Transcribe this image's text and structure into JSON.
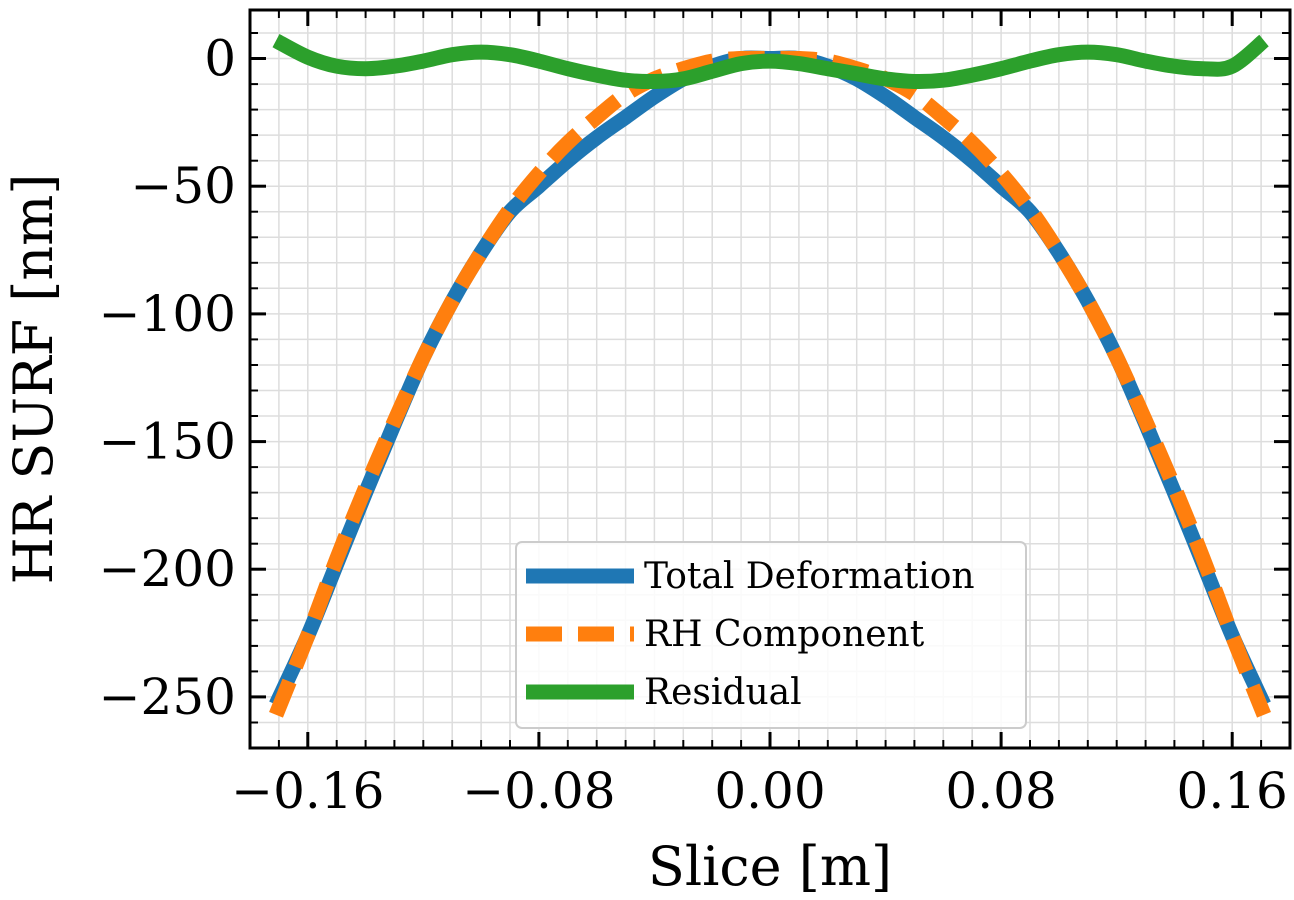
{
  "chart_data": {
    "type": "line",
    "xlabel": "Slice [m]",
    "ylabel": "HR SURF [nm]",
    "xlim": [
      -0.18,
      0.18
    ],
    "ylim": [
      -270,
      19
    ],
    "xticks": [
      -0.16,
      -0.08,
      0.0,
      0.08,
      0.16
    ],
    "xtick_labels": [
      "−0.16",
      "−0.08",
      "0.00",
      "0.08",
      "0.16"
    ],
    "yticks": [
      0,
      -50,
      -100,
      -150,
      -200,
      -250
    ],
    "ytick_labels": [
      "0",
      "−50",
      "−100",
      "−150",
      "−200",
      "−250"
    ],
    "grid": true,
    "legend_position": "lower-center",
    "series": [
      {
        "name": "Total Deformation",
        "color": "#1f77b4",
        "style": "solid",
        "x": [
          -0.171,
          -0.16,
          -0.15,
          -0.14,
          -0.13,
          -0.12,
          -0.11,
          -0.1,
          -0.09,
          -0.08,
          -0.07,
          -0.06,
          -0.05,
          -0.04,
          -0.03,
          -0.02,
          -0.01,
          0.0,
          0.01,
          0.02,
          0.03,
          0.04,
          0.05,
          0.06,
          0.07,
          0.08,
          0.09,
          0.1,
          0.11,
          0.12,
          0.13,
          0.14,
          0.15,
          0.16,
          0.171
        ],
        "y": [
          -253,
          -226,
          -198,
          -170,
          -143,
          -117,
          -95,
          -76,
          -60,
          -50,
          -40,
          -31,
          -23,
          -15,
          -8,
          -3,
          0,
          0,
          0,
          -3,
          -8,
          -15,
          -23,
          -31,
          -40,
          -50,
          -60,
          -76,
          -95,
          -117,
          -143,
          -170,
          -198,
          -226,
          -253
        ]
      },
      {
        "name": "RH Component",
        "color": "#ff7f0e",
        "style": "dashed",
        "x": [
          -0.171,
          -0.16,
          -0.15,
          -0.14,
          -0.13,
          -0.12,
          -0.11,
          -0.1,
          -0.09,
          -0.08,
          -0.07,
          -0.06,
          -0.05,
          -0.04,
          -0.03,
          -0.02,
          -0.01,
          0.0,
          0.01,
          0.02,
          0.03,
          0.04,
          0.05,
          0.06,
          0.07,
          0.08,
          0.09,
          0.1,
          0.11,
          0.12,
          0.13,
          0.14,
          0.15,
          0.16,
          0.171
        ],
        "y": [
          -257,
          -226,
          -196,
          -168,
          -142,
          -117,
          -95,
          -76,
          -59,
          -45,
          -33,
          -23,
          -14,
          -8,
          -4,
          -1,
          0,
          0,
          0,
          -1,
          -4,
          -8,
          -14,
          -23,
          -33,
          -45,
          -59,
          -76,
          -95,
          -117,
          -142,
          -168,
          -196,
          -226,
          -257
        ]
      },
      {
        "name": "Residual",
        "color": "#2ca02c",
        "style": "solid",
        "x": [
          -0.171,
          -0.16,
          -0.15,
          -0.14,
          -0.13,
          -0.12,
          -0.11,
          -0.1,
          -0.09,
          -0.08,
          -0.07,
          -0.06,
          -0.05,
          -0.04,
          -0.03,
          -0.02,
          -0.01,
          0.0,
          0.01,
          0.02,
          0.03,
          0.04,
          0.05,
          0.06,
          0.07,
          0.08,
          0.09,
          0.1,
          0.11,
          0.12,
          0.13,
          0.14,
          0.15,
          0.16,
          0.171
        ],
        "y": [
          7,
          0.5,
          -3,
          -4,
          -3,
          -1,
          1.5,
          2.5,
          1.5,
          -1,
          -4,
          -6.5,
          -8.5,
          -9,
          -8,
          -5,
          -2,
          -1,
          -2,
          -4,
          -6,
          -8,
          -9,
          -8.5,
          -6.5,
          -4,
          -1,
          1.5,
          2.5,
          1.5,
          -1,
          -3,
          -4,
          -3,
          7
        ]
      }
    ]
  }
}
